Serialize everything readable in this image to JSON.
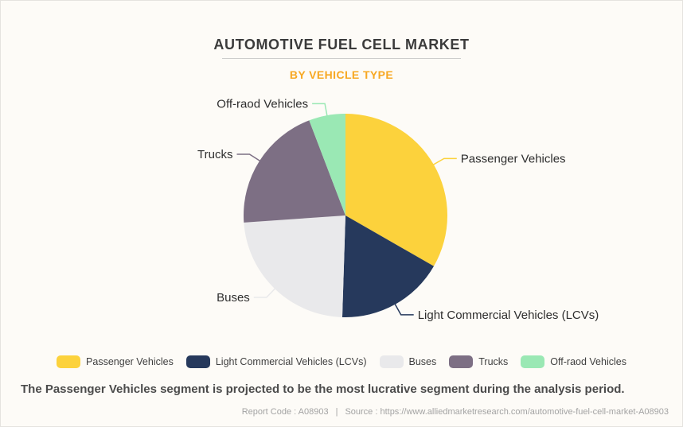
{
  "header": {
    "title": "AUTOMOTIVE FUEL CELL MARKET",
    "subtitle": "BY VEHICLE TYPE"
  },
  "chart_data": {
    "type": "pie",
    "title": "AUTOMOTIVE FUEL CELL MARKET",
    "subtitle": "BY VEHICLE TYPE",
    "value_unit": "percent share (estimated from slice angles)",
    "start_angle_deg_from_top": 0,
    "direction": "clockwise",
    "legend_position": "bottom",
    "grid": false,
    "segments": [
      {
        "label": "Passenger Vehicles",
        "value": 33.3,
        "color": "#FCD23C"
      },
      {
        "label": "Light Commercial Vehicles (LCVs)",
        "value": 17.2,
        "color": "#26395C"
      },
      {
        "label": "Buses",
        "value": 23.4,
        "color": "#E9E9EB"
      },
      {
        "label": "Trucks",
        "value": 20.3,
        "color": "#7D6F84"
      },
      {
        "label": "Off-raod Vehicles",
        "value": 5.8,
        "color": "#9AE8B4"
      }
    ]
  },
  "statement": "The Passenger Vehicles segment is projected to be the most lucrative segment during the analysis period.",
  "footer": {
    "report_code": "Report Code : A08903",
    "separator": "|",
    "source": "Source : https://www.alliedmarketresearch.com/automotive-fuel-cell-market-A08903"
  },
  "colors": {
    "background": "#FDFBF7",
    "title_text": "#3B3B3B",
    "subtitle_accent": "#F7A823",
    "pie_label_text": "#2E2E2E",
    "statement_text": "#4B4B4B",
    "footer_text": "#A3A3A3",
    "divider": "#CCCCCC"
  }
}
